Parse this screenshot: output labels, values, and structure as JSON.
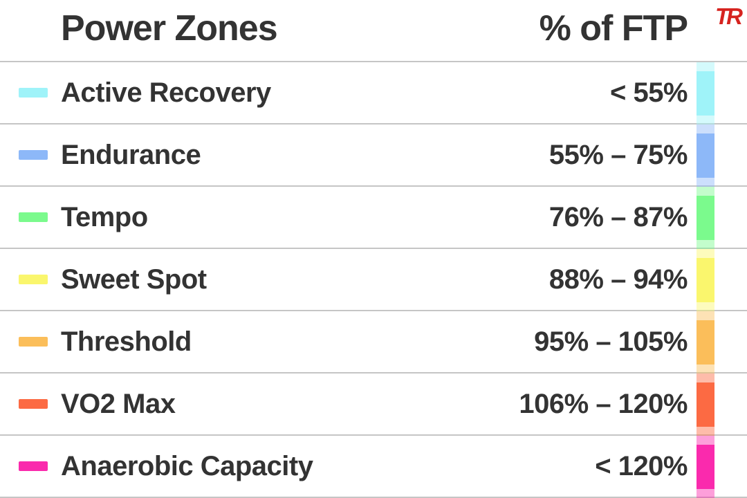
{
  "header": {
    "title": "Power Zones",
    "column_label": "% of FTP",
    "logo_text": "TR",
    "logo_color": "#d6231f"
  },
  "colors": {
    "text": "#333333",
    "divider": "#c5c5c5",
    "background": "#ffffff"
  },
  "zones": [
    {
      "name": "Active Recovery",
      "range": "< 55%",
      "color": "#9ff3f9"
    },
    {
      "name": "Endurance",
      "range": "55% – 75%",
      "color": "#8db8f8"
    },
    {
      "name": "Tempo",
      "range": "76% – 87%",
      "color": "#7bfa8d"
    },
    {
      "name": "Sweet Spot",
      "range": "88% – 94%",
      "color": "#faf66d"
    },
    {
      "name": "Threshold",
      "range": "95% – 105%",
      "color": "#fbbe5a"
    },
    {
      "name": "VO2 Max",
      "range": "106% – 120%",
      "color": "#fc6a43"
    },
    {
      "name": "Anaerobic Capacity",
      "range": "< 120%",
      "color": "#fa2aad"
    }
  ],
  "chart_data": {
    "type": "table",
    "title": "Power Zones",
    "columns": [
      "Power Zones",
      "% of FTP"
    ],
    "rows": [
      [
        "Active Recovery",
        "< 55%"
      ],
      [
        "Endurance",
        "55% – 75%"
      ],
      [
        "Tempo",
        "76% – 87%"
      ],
      [
        "Sweet Spot",
        "88% – 94%"
      ],
      [
        "Threshold",
        "95% – 105%"
      ],
      [
        "VO2 Max",
        "106% – 120%"
      ],
      [
        "Anaerobic Capacity",
        "< 120%"
      ]
    ],
    "row_colors": [
      "#9ff3f9",
      "#8db8f8",
      "#7bfa8d",
      "#faf66d",
      "#fbbe5a",
      "#fc6a43",
      "#fa2aad"
    ]
  }
}
